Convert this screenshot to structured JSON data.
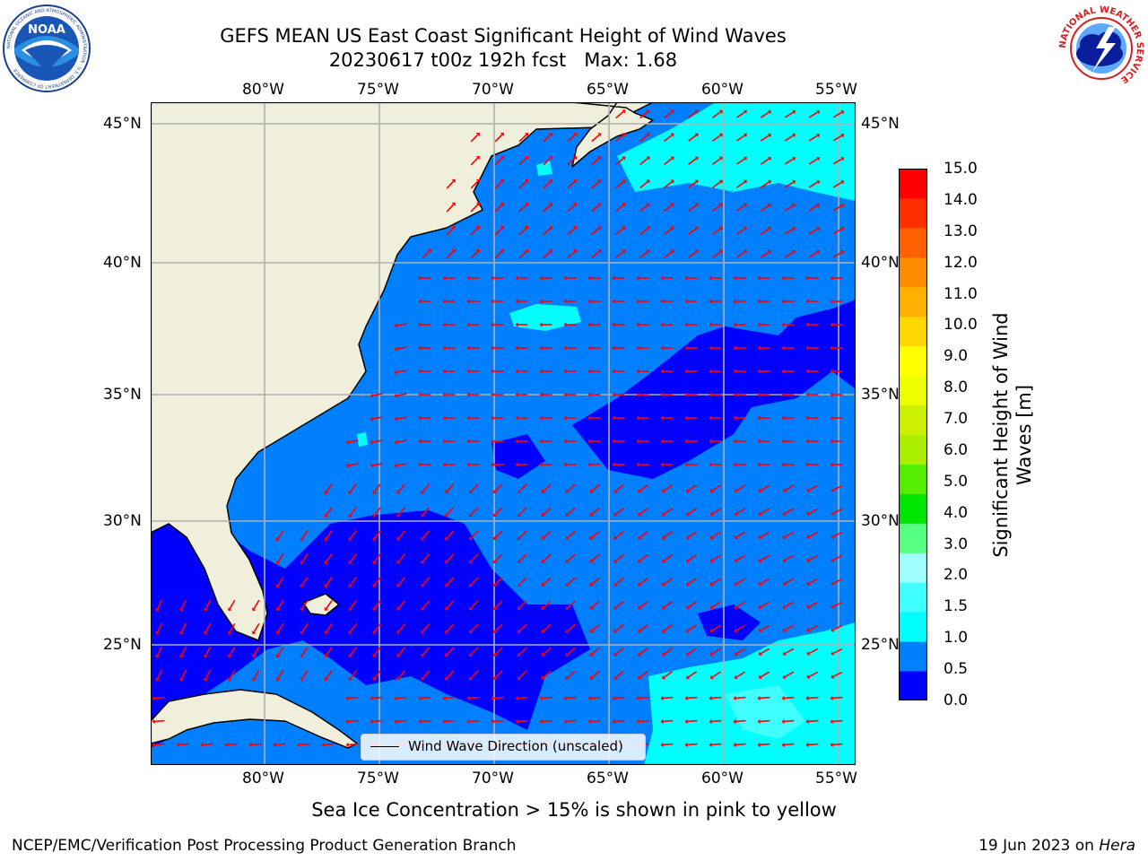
{
  "header": {
    "title_line1": "GEFS MEAN US East Coast Significant Height of Wind Waves",
    "title_line2": "20230617 t00z 192h fcst   Max: 1.68"
  },
  "logos": {
    "left_text": "NOAA",
    "left_ring_text": "NATIONAL OCEANIC AND ATMOSPHERIC ADMINISTRATION · U.S. DEPARTMENT OF COMMERCE",
    "right_ring_text": "NATIONAL WEATHER SERVICE"
  },
  "map": {
    "lon_labels": [
      "80°W",
      "75°W",
      "70°W",
      "65°W",
      "60°W",
      "55°W"
    ],
    "lat_labels": [
      "45°N",
      "40°N",
      "35°N",
      "30°N",
      "25°N"
    ],
    "colors": {
      "land": "#efefdc",
      "wave_0": "#0000ff",
      "wave_05": "#007fff",
      "wave_1": "#00ffff",
      "wave_15": "#40ffff",
      "arrow": "#ff0000",
      "grid": "#b0b0b0"
    },
    "legend_label": "Wind Wave Direction (unscaled)"
  },
  "colorbar": {
    "label": "Significant Height of Wind Waves [m]",
    "ticks": [
      "0.0",
      "0.5",
      "1.0",
      "1.5",
      "2.0",
      "3.0",
      "4.0",
      "5.0",
      "6.0",
      "7.0",
      "8.0",
      "9.0",
      "10.0",
      "11.0",
      "12.0",
      "13.0",
      "14.0",
      "15.0"
    ],
    "colors": [
      "#0000ff",
      "#007fff",
      "#00ffff",
      "#40ffff",
      "#9ffcff",
      "#55ff80",
      "#00e600",
      "#55ee00",
      "#aaee00",
      "#ccf000",
      "#eeff00",
      "#ffff00",
      "#ffd700",
      "#ffb000",
      "#ff8c00",
      "#ff6000",
      "#ff3000",
      "#ff0000"
    ]
  },
  "caption": "Sea Ice Concentration > 15% is shown in pink to yellow",
  "footer": {
    "left": "NCEP/EMC/Verification Post Processing Product Generation Branch",
    "date": "19 Jun 2023 on ",
    "host": "Hera"
  }
}
